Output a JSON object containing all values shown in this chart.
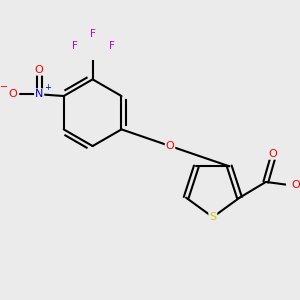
{
  "background_color": "#ebebeb",
  "bond_color": "#000000",
  "atom_colors": {
    "O": "#ff0000",
    "N_plus": "#0000cc",
    "O_minus": "#ff0000",
    "S": "#cccc00",
    "F": "#cc00cc"
  },
  "figsize": [
    3.0,
    3.0
  ],
  "dpi": 100
}
